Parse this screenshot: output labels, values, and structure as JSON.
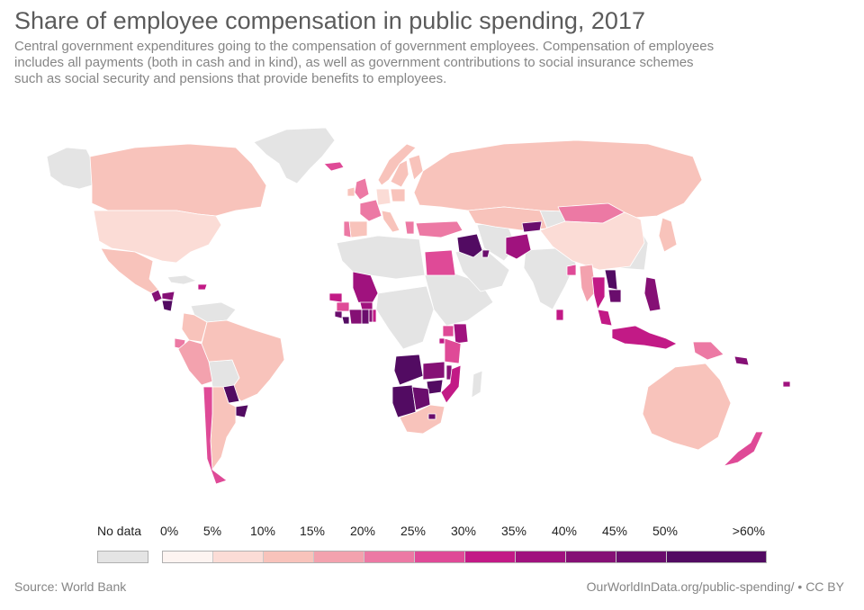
{
  "title": "Share of employee compensation in public spending, 2017",
  "subtitle": "Central government expenditures going to the compensation of government employees. Compensation of employees includes all payments (both in cash and in kind), as well as government contributions to social insurance schemes such as social security and pensions that provide benefits to employees.",
  "legend": {
    "no_data_label": "No data",
    "tick_labels": [
      "0%",
      "5%",
      "10%",
      "15%",
      "20%",
      "25%",
      "30%",
      "35%",
      "40%",
      "45%",
      "50%",
      ">60%"
    ],
    "no_data_color": "#e4e4e4",
    "bin_colors": [
      "#fdf4f1",
      "#fbdcd6",
      "#f8c3bb",
      "#f3a2ae",
      "#ec79a4",
      "#df4a97",
      "#c21a86",
      "#a0127e",
      "#851075",
      "#6a0d6d",
      "#520b62"
    ]
  },
  "source": "Source: World Bank",
  "credit": "OurWorldInData.org/public-spending/ • CC BY",
  "chart_data": {
    "type": "choropleth",
    "year": "2017",
    "unit": "%",
    "scale_bins": [
      0,
      5,
      10,
      15,
      20,
      25,
      30,
      35,
      40,
      45,
      50,
      60
    ],
    "regions": [
      {
        "name": "Canada",
        "value": 12
      },
      {
        "name": "United States",
        "value": 8
      },
      {
        "name": "Mexico",
        "value": 12
      },
      {
        "name": "Guatemala",
        "value": 42
      },
      {
        "name": "Honduras",
        "value": 40
      },
      {
        "name": "Nicaragua",
        "value": 50
      },
      {
        "name": "Dominican Republic",
        "value": 30
      },
      {
        "name": "Colombia",
        "value": 12
      },
      {
        "name": "Ecuador",
        "value": 20
      },
      {
        "name": "Peru",
        "value": 18
      },
      {
        "name": "Brazil",
        "value": 12
      },
      {
        "name": "Paraguay",
        "value": 55
      },
      {
        "name": "Uruguay",
        "value": 50
      },
      {
        "name": "Argentina",
        "value": 14
      },
      {
        "name": "Chile",
        "value": 25
      },
      {
        "name": "Iceland",
        "value": 28
      },
      {
        "name": "United Kingdom",
        "value": 22
      },
      {
        "name": "Ireland",
        "value": 14
      },
      {
        "name": "Norway",
        "value": 12
      },
      {
        "name": "Sweden",
        "value": 10
      },
      {
        "name": "Finland",
        "value": 12
      },
      {
        "name": "France",
        "value": 20
      },
      {
        "name": "Spain",
        "value": 12
      },
      {
        "name": "Portugal",
        "value": 22
      },
      {
        "name": "Germany",
        "value": 8
      },
      {
        "name": "Italy",
        "value": 14
      },
      {
        "name": "Poland",
        "value": 12
      },
      {
        "name": "Greece",
        "value": 22
      },
      {
        "name": "Turkey",
        "value": 20
      },
      {
        "name": "Russia",
        "value": 12
      },
      {
        "name": "Kazakhstan",
        "value": 10
      },
      {
        "name": "Mongolia",
        "value": 20
      },
      {
        "name": "China",
        "value": 8
      },
      {
        "name": "Japan",
        "value": 13
      },
      {
        "name": "Kyrgyzstan",
        "value": 45
      },
      {
        "name": "Egypt",
        "value": 25
      },
      {
        "name": "Iraq",
        "value": 55
      },
      {
        "name": "Kuwait",
        "value": 45
      },
      {
        "name": "Afghanistan",
        "value": 35
      },
      {
        "name": "Bangladesh",
        "value": 28
      },
      {
        "name": "Sri Lanka",
        "value": 30
      },
      {
        "name": "Myanmar",
        "value": 15
      },
      {
        "name": "Thailand",
        "value": 30
      },
      {
        "name": "Laos",
        "value": 55
      },
      {
        "name": "Cambodia",
        "value": 45
      },
      {
        "name": "Malaysia",
        "value": 30
      },
      {
        "name": "Philippines",
        "value": 40
      },
      {
        "name": "Indonesia",
        "value": 32
      },
      {
        "name": "Papua New Guinea",
        "value": 20
      },
      {
        "name": "Solomon Islands",
        "value": 40
      },
      {
        "name": "Australia",
        "value": 12
      },
      {
        "name": "New Zealand",
        "value": 28
      },
      {
        "name": "Mali",
        "value": 38
      },
      {
        "name": "Burkina Faso",
        "value": 38
      },
      {
        "name": "Senegal",
        "value": 30
      },
      {
        "name": "Guinea",
        "value": 25
      },
      {
        "name": "Sierra Leone",
        "value": 48
      },
      {
        "name": "Liberia",
        "value": 55
      },
      {
        "name": "Cote d'Ivoire",
        "value": 42
      },
      {
        "name": "Ghana",
        "value": 48
      },
      {
        "name": "Togo",
        "value": 40
      },
      {
        "name": "Benin",
        "value": 30
      },
      {
        "name": "Uganda",
        "value": 28
      },
      {
        "name": "Kenya",
        "value": 35
      },
      {
        "name": "Rwanda",
        "value": 30
      },
      {
        "name": "Tanzania",
        "value": 26
      },
      {
        "name": "Angola",
        "value": 55
      },
      {
        "name": "Zambia",
        "value": 40
      },
      {
        "name": "Malawi",
        "value": 40
      },
      {
        "name": "Mozambique",
        "value": 30
      },
      {
        "name": "Zimbabwe",
        "value": 50
      },
      {
        "name": "Namibia",
        "value": 55
      },
      {
        "name": "Botswana",
        "value": 45
      },
      {
        "name": "South Africa",
        "value": 14
      },
      {
        "name": "Lesotho",
        "value": 45
      },
      {
        "name": "Fiji",
        "value": 38
      }
    ]
  }
}
